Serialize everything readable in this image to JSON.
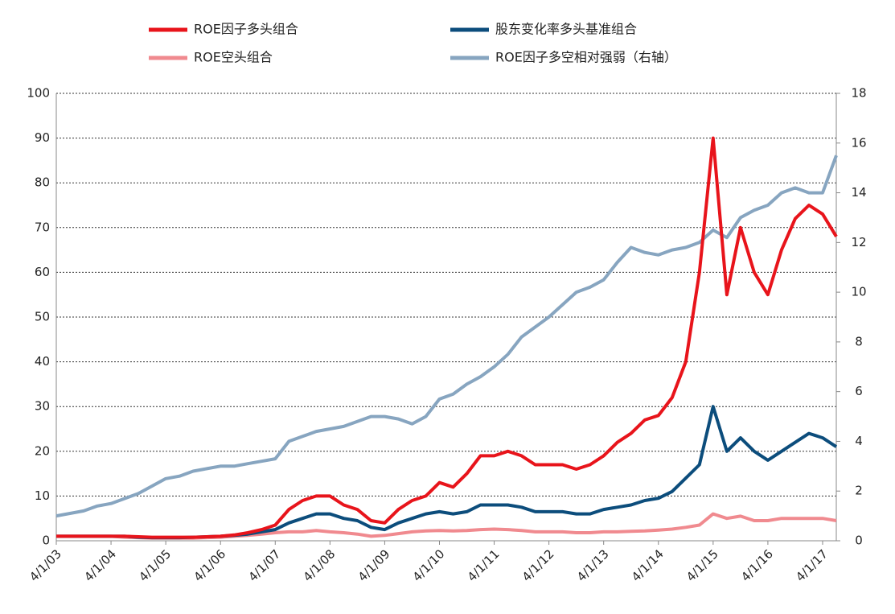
{
  "chart_data": {
    "type": "line",
    "categories": [
      "4/1/03",
      null,
      null,
      null,
      "4/1/04",
      null,
      null,
      null,
      "4/1/05",
      null,
      null,
      null,
      "4/1/06",
      null,
      null,
      null,
      "4/1/07",
      null,
      null,
      null,
      "4/1/08",
      null,
      null,
      null,
      "4/1/09",
      null,
      null,
      null,
      "4/1/10",
      null,
      null,
      null,
      "4/1/11",
      null,
      null,
      null,
      "4/1/12",
      null,
      null,
      null,
      "4/1/13",
      null,
      null,
      null,
      "4/1/14",
      null,
      null,
      null,
      "4/1/15",
      null,
      null,
      null,
      "4/1/16",
      null,
      null,
      null,
      "4/1/17",
      null
    ],
    "series": [
      {
        "name": "ROE因子多头组合",
        "color": "#e8141b",
        "values": [
          1,
          1,
          1,
          1,
          1,
          1,
          0.9,
          0.8,
          0.8,
          0.8,
          0.8,
          0.9,
          1,
          1.3,
          1.8,
          2.5,
          3.5,
          7,
          9,
          10,
          10,
          8,
          7,
          4.5,
          4,
          7,
          9,
          10,
          13,
          12,
          15,
          19,
          19,
          20,
          19,
          17,
          17,
          17,
          16,
          17,
          19,
          22,
          24,
          27,
          28,
          32,
          40,
          60,
          90,
          55,
          70,
          60,
          55,
          65,
          72,
          75,
          73,
          68
        ]
      },
      {
        "name": "股东变化率多头基准组合",
        "color": "#0c4d7c",
        "values": [
          1,
          1,
          1,
          1,
          1,
          1,
          0.8,
          0.7,
          0.7,
          0.7,
          0.8,
          0.9,
          1,
          1.2,
          1.5,
          2,
          2.5,
          4,
          5,
          6,
          6,
          5,
          4.5,
          3,
          2.5,
          4,
          5,
          6,
          6.5,
          6,
          6.5,
          8,
          8,
          8,
          7.5,
          6.5,
          6.5,
          6.5,
          6,
          6,
          7,
          7.5,
          8,
          9,
          9.5,
          11,
          14,
          17,
          30,
          20,
          23,
          20,
          18,
          20,
          22,
          24,
          23,
          21
        ]
      },
      {
        "name": "ROE空头组合",
        "color": "#f08a8f",
        "values": [
          1,
          1,
          1,
          1,
          1,
          0.8,
          0.7,
          0.6,
          0.6,
          0.6,
          0.6,
          0.7,
          0.8,
          1,
          1.2,
          1.5,
          1.8,
          2,
          2,
          2.3,
          2,
          1.8,
          1.5,
          1,
          1.2,
          1.6,
          2,
          2.2,
          2.3,
          2.2,
          2.3,
          2.5,
          2.6,
          2.5,
          2.3,
          2,
          2,
          2,
          1.8,
          1.8,
          2,
          2,
          2.1,
          2.2,
          2.4,
          2.6,
          3,
          3.5,
          6,
          5,
          5.5,
          4.5,
          4.5,
          5,
          5,
          5,
          5,
          4.5
        ]
      },
      {
        "name": "ROE因子多空相对强弱（右轴）",
        "color": "#87a5c0",
        "axis": "y2",
        "values": [
          1,
          1.1,
          1.2,
          1.4,
          1.5,
          1.7,
          1.9,
          2.2,
          2.5,
          2.6,
          2.8,
          2.9,
          3,
          3.0,
          3.1,
          3.2,
          3.3,
          4.0,
          4.2,
          4.4,
          4.5,
          4.6,
          4.8,
          5.0,
          5.0,
          4.9,
          4.7,
          5.0,
          5.7,
          5.9,
          6.3,
          6.6,
          7,
          7.5,
          8.2,
          8.6,
          9,
          9.5,
          10.0,
          10.2,
          10.5,
          11.2,
          11.8,
          11.6,
          11.5,
          11.7,
          11.8,
          12.0,
          12.5,
          12.2,
          13.0,
          13.3,
          13.5,
          14.0,
          14.2,
          14.0,
          14.0,
          15.5
        ]
      }
    ],
    "ylim": [
      0,
      100
    ],
    "yticks": [
      0,
      10,
      20,
      30,
      40,
      50,
      60,
      70,
      80,
      90,
      100
    ],
    "y2lim": [
      0,
      18
    ],
    "y2ticks": [
      0,
      2,
      4,
      6,
      8,
      10,
      12,
      14,
      16,
      18
    ],
    "grid": true
  }
}
